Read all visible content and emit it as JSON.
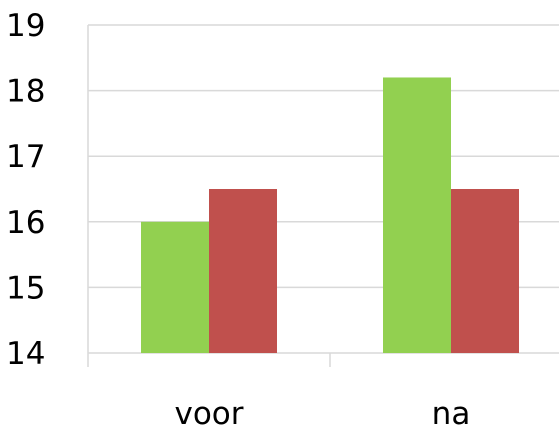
{
  "chart_data": {
    "type": "bar",
    "title": "",
    "xlabel": "",
    "ylabel": "",
    "categories": [
      "voor",
      "na"
    ],
    "series": [
      {
        "color": "#92d050",
        "values": [
          16.0,
          18.2
        ]
      },
      {
        "color": "#c0504d",
        "values": [
          16.5,
          16.5
        ]
      }
    ],
    "ylim": [
      14,
      19
    ],
    "yticks": [
      "14",
      "15",
      "16",
      "17",
      "18",
      "19"
    ],
    "grid": true,
    "legend": "none"
  }
}
